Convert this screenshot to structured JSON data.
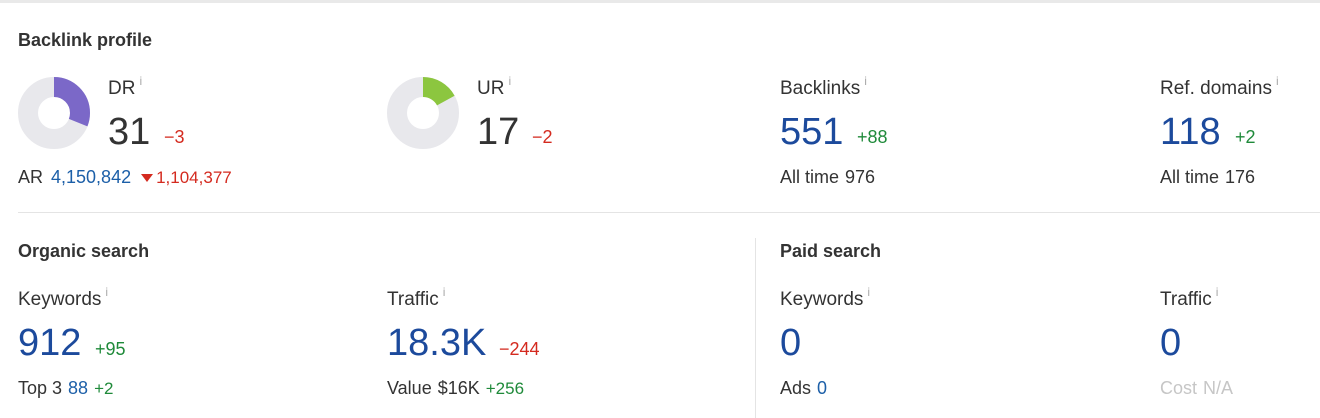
{
  "backlink_profile": {
    "title": "Backlink profile",
    "dr": {
      "label": "DR",
      "info": "i",
      "value": "31",
      "delta": "−3",
      "fill_fraction": 0.31,
      "color": "#7b68c8"
    },
    "ar": {
      "label": "AR",
      "value": "4,150,842",
      "delta": "1,104,377"
    },
    "ur": {
      "label": "UR",
      "info": "i",
      "value": "17",
      "delta": "−2",
      "fill_fraction": 0.17,
      "color": "#8cc63f"
    },
    "backlinks": {
      "label": "Backlinks",
      "info": "i",
      "value": "551",
      "delta": "+88",
      "all_time_label": "All time",
      "all_time_value": "976"
    },
    "ref_domains": {
      "label": "Ref. domains",
      "info": "i",
      "value": "118",
      "delta": "+2",
      "all_time_label": "All time",
      "all_time_value": "176"
    }
  },
  "organic_search": {
    "title": "Organic search",
    "keywords": {
      "label": "Keywords",
      "info": "i",
      "value": "912",
      "delta": "+95",
      "top3_label": "Top 3",
      "top3_value": "88",
      "top3_delta": "+2"
    },
    "traffic": {
      "label": "Traffic",
      "info": "i",
      "value": "18.3K",
      "delta": "−244",
      "value_label": "Value",
      "value_amount": "$16K",
      "value_delta": "+256"
    }
  },
  "paid_search": {
    "title": "Paid search",
    "keywords": {
      "label": "Keywords",
      "info": "i",
      "value": "0",
      "ads_label": "Ads",
      "ads_value": "0"
    },
    "traffic": {
      "label": "Traffic",
      "info": "i",
      "value": "0",
      "cost_label": "Cost",
      "cost_value": "N/A"
    }
  }
}
